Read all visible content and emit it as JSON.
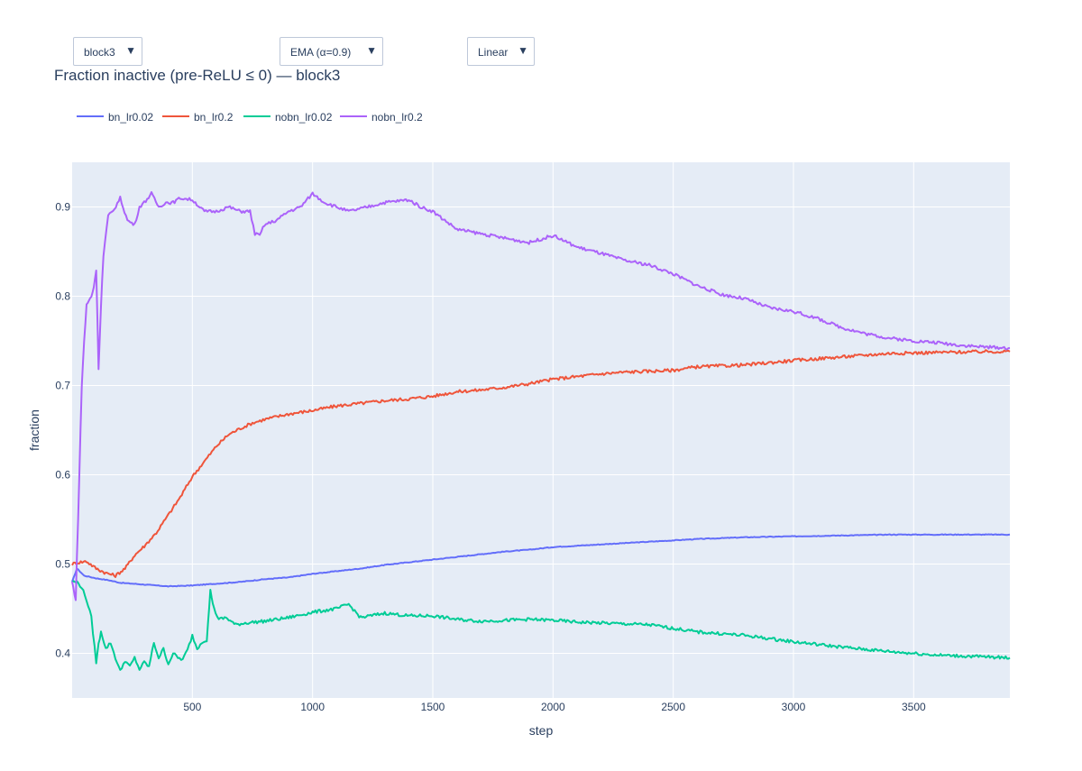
{
  "controls": {
    "block_select": {
      "value": "block3",
      "arrow": "▼"
    },
    "smoothing_select": {
      "value": "EMA (α=0.9)",
      "arrow": "▼"
    },
    "scale_select": {
      "value": "Linear",
      "arrow": "▼"
    }
  },
  "chart_data": {
    "type": "line",
    "title": "Fraction inactive (pre-ReLU ≤ 0) — block3",
    "xlabel": "step",
    "ylabel": "fraction",
    "xlim": [
      0,
      3900
    ],
    "ylim": [
      0.35,
      0.95
    ],
    "xticks": [
      500,
      1000,
      1500,
      2000,
      2500,
      3000,
      3500
    ],
    "yticks": [
      0.4,
      0.5,
      0.6,
      0.7,
      0.8,
      0.9
    ],
    "grid": true,
    "legend_position": "top-left, horizontal",
    "plot_background": "#e5ecf6",
    "series": [
      {
        "name": "bn_lr0.02",
        "color": "#636efa",
        "x": [
          0,
          20,
          50,
          100,
          150,
          200,
          300,
          400,
          500,
          600,
          700,
          800,
          900,
          1000,
          1100,
          1200,
          1300,
          1400,
          1500,
          1600,
          1700,
          1800,
          1900,
          2000,
          2200,
          2400,
          2600,
          2800,
          3000,
          3200,
          3400,
          3600,
          3800,
          3900
        ],
        "y": [
          0.48,
          0.495,
          0.487,
          0.484,
          0.482,
          0.479,
          0.477,
          0.475,
          0.476,
          0.478,
          0.48,
          0.483,
          0.485,
          0.489,
          0.492,
          0.495,
          0.499,
          0.502,
          0.505,
          0.508,
          0.511,
          0.514,
          0.516,
          0.519,
          0.522,
          0.525,
          0.528,
          0.53,
          0.531,
          0.532,
          0.533,
          0.533,
          0.533,
          0.533
        ]
      },
      {
        "name": "bn_lr0.2",
        "color": "#ef553b",
        "x": [
          0,
          30,
          60,
          100,
          140,
          180,
          220,
          260,
          300,
          350,
          400,
          450,
          500,
          550,
          600,
          650,
          700,
          750,
          800,
          900,
          1000,
          1100,
          1200,
          1300,
          1400,
          1500,
          1600,
          1700,
          1800,
          1900,
          2000,
          2100,
          2200,
          2300,
          2400,
          2500,
          2600,
          2800,
          3000,
          3200,
          3400,
          3600,
          3800,
          3900
        ],
        "y": [
          0.5,
          0.502,
          0.503,
          0.495,
          0.49,
          0.487,
          0.495,
          0.51,
          0.52,
          0.535,
          0.555,
          0.575,
          0.598,
          0.615,
          0.632,
          0.645,
          0.652,
          0.658,
          0.662,
          0.668,
          0.672,
          0.677,
          0.68,
          0.683,
          0.685,
          0.688,
          0.693,
          0.695,
          0.698,
          0.702,
          0.707,
          0.71,
          0.713,
          0.715,
          0.716,
          0.717,
          0.721,
          0.723,
          0.728,
          0.732,
          0.736,
          0.737,
          0.738,
          0.738
        ]
      },
      {
        "name": "nobn_lr0.02",
        "color": "#00cc96",
        "x": [
          0,
          20,
          40,
          60,
          80,
          100,
          110,
          120,
          140,
          160,
          180,
          200,
          220,
          240,
          260,
          280,
          300,
          320,
          340,
          360,
          380,
          400,
          420,
          440,
          460,
          480,
          500,
          520,
          540,
          560,
          575,
          590,
          610,
          640,
          680,
          720,
          800,
          900,
          1000,
          1100,
          1150,
          1200,
          1300,
          1400,
          1500,
          1600,
          1700,
          1800,
          1900,
          2000,
          2100,
          2200,
          2300,
          2400,
          2500,
          2600,
          2800,
          3000,
          3200,
          3400,
          3600,
          3800,
          3900
        ],
        "y": [
          0.48,
          0.48,
          0.474,
          0.46,
          0.44,
          0.39,
          0.41,
          0.425,
          0.405,
          0.412,
          0.395,
          0.38,
          0.392,
          0.385,
          0.395,
          0.382,
          0.39,
          0.385,
          0.412,
          0.395,
          0.405,
          0.388,
          0.4,
          0.395,
          0.393,
          0.404,
          0.42,
          0.405,
          0.413,
          0.415,
          0.47,
          0.45,
          0.438,
          0.44,
          0.432,
          0.434,
          0.436,
          0.44,
          0.446,
          0.45,
          0.455,
          0.44,
          0.445,
          0.442,
          0.442,
          0.438,
          0.436,
          0.437,
          0.438,
          0.437,
          0.435,
          0.434,
          0.433,
          0.432,
          0.428,
          0.424,
          0.42,
          0.413,
          0.407,
          0.402,
          0.398,
          0.396,
          0.395
        ]
      },
      {
        "name": "nobn_lr0.2",
        "color": "#ab63fa",
        "x": [
          0,
          15,
          30,
          40,
          50,
          60,
          70,
          80,
          90,
          100,
          110,
          120,
          130,
          150,
          170,
          200,
          230,
          260,
          280,
          300,
          330,
          360,
          390,
          420,
          450,
          500,
          550,
          600,
          650,
          700,
          740,
          760,
          780,
          800,
          850,
          900,
          950,
          1000,
          1050,
          1100,
          1150,
          1200,
          1300,
          1400,
          1450,
          1500,
          1550,
          1600,
          1700,
          1800,
          1900,
          2000,
          2100,
          2200,
          2300,
          2400,
          2500,
          2600,
          2700,
          2800,
          2900,
          3000,
          3100,
          3200,
          3300,
          3400,
          3500,
          3600,
          3700,
          3800,
          3900
        ],
        "y": [
          0.48,
          0.46,
          0.6,
          0.7,
          0.75,
          0.79,
          0.795,
          0.8,
          0.81,
          0.83,
          0.72,
          0.79,
          0.845,
          0.89,
          0.895,
          0.91,
          0.885,
          0.88,
          0.9,
          0.905,
          0.915,
          0.9,
          0.905,
          0.905,
          0.91,
          0.908,
          0.895,
          0.895,
          0.9,
          0.895,
          0.895,
          0.87,
          0.868,
          0.88,
          0.885,
          0.895,
          0.9,
          0.915,
          0.905,
          0.9,
          0.895,
          0.898,
          0.905,
          0.908,
          0.9,
          0.895,
          0.885,
          0.875,
          0.87,
          0.865,
          0.86,
          0.868,
          0.855,
          0.848,
          0.84,
          0.835,
          0.825,
          0.812,
          0.802,
          0.797,
          0.787,
          0.783,
          0.775,
          0.765,
          0.758,
          0.753,
          0.75,
          0.748,
          0.745,
          0.743,
          0.742
        ]
      }
    ]
  }
}
